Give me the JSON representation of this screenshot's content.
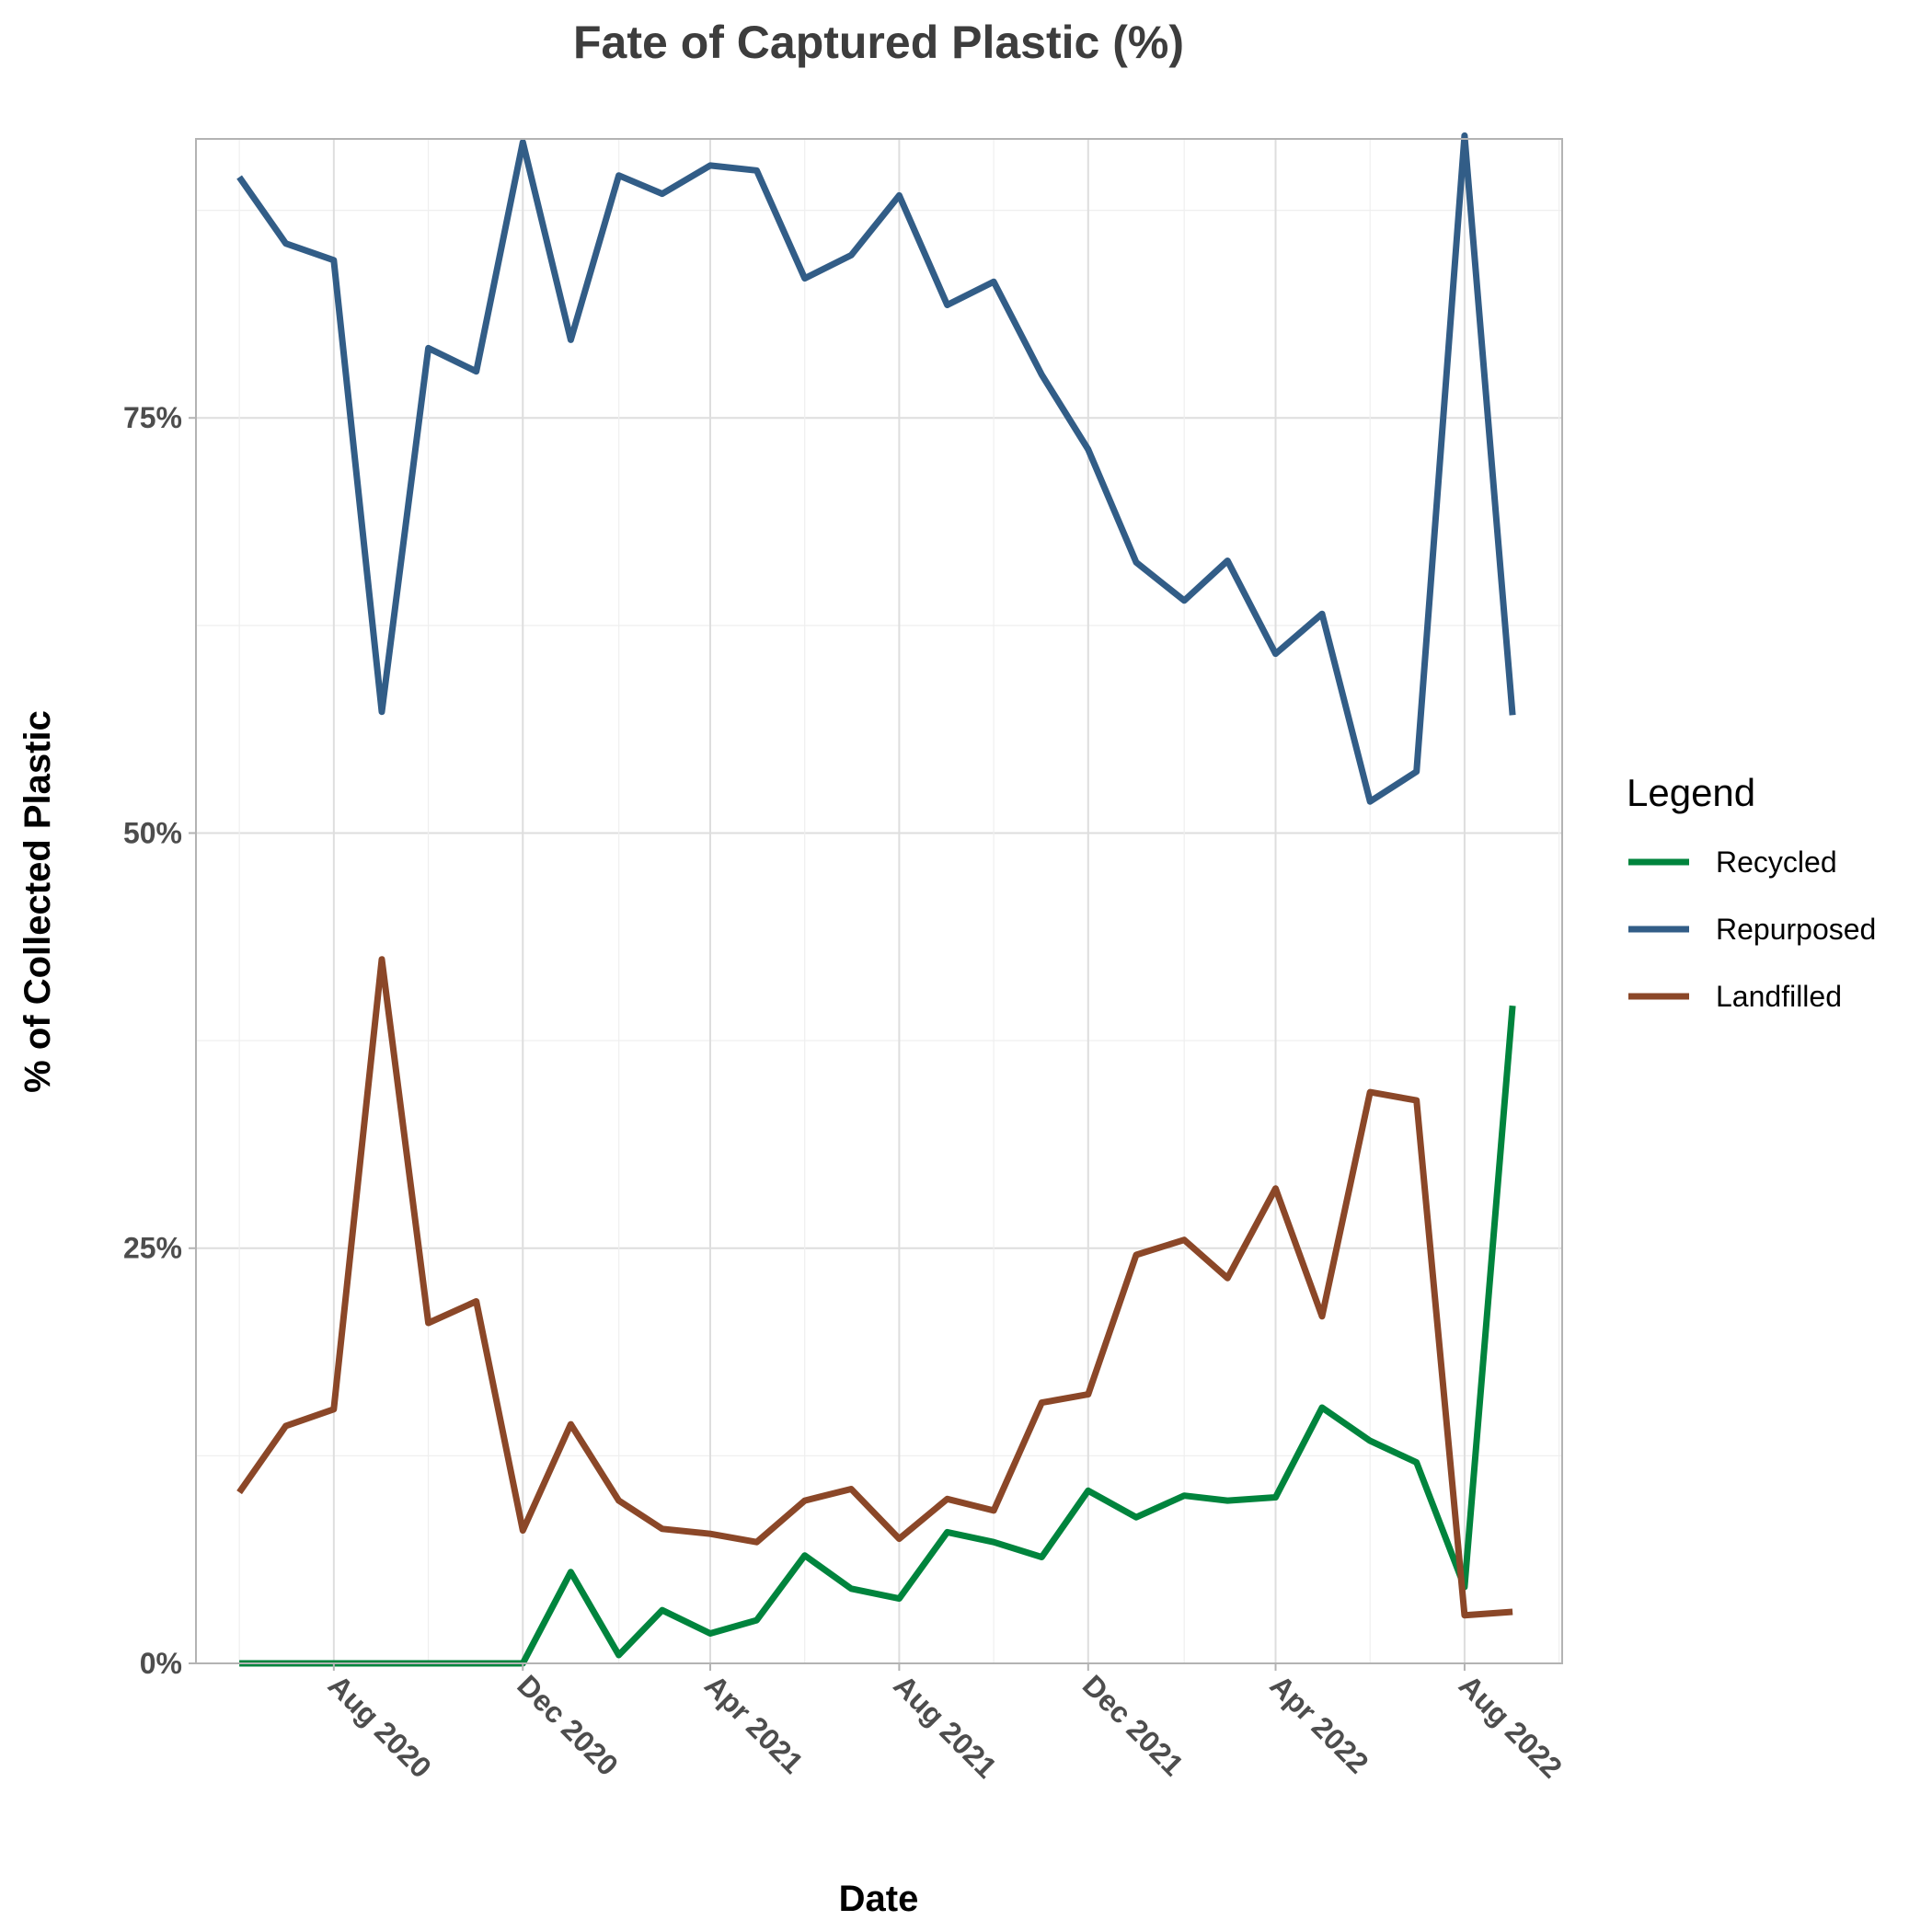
{
  "chart_data": {
    "type": "line",
    "title": "Fate of Captured Plastic (%)",
    "xlabel": "Date",
    "ylabel": "% of Collected Plastic",
    "x": [
      "2020-06",
      "2020-07",
      "2020-08",
      "2020-09",
      "2020-10",
      "2020-11",
      "2020-12",
      "2021-01",
      "2021-02",
      "2021-03",
      "2021-04",
      "2021-05",
      "2021-06",
      "2021-07",
      "2021-08",
      "2021-09",
      "2021-10",
      "2021-11",
      "2021-12",
      "2022-01",
      "2022-02",
      "2022-03",
      "2022-04",
      "2022-05",
      "2022-06",
      "2022-07",
      "2022-08",
      "2022-09"
    ],
    "x_ticks": [
      {
        "date": "2020-08",
        "label": "Aug 2020"
      },
      {
        "date": "2020-12",
        "label": "Dec 2020"
      },
      {
        "date": "2021-04",
        "label": "Apr 2021"
      },
      {
        "date": "2021-08",
        "label": "Aug 2021"
      },
      {
        "date": "2021-12",
        "label": "Dec 2021"
      },
      {
        "date": "2022-04",
        "label": "Apr 2022"
      },
      {
        "date": "2022-08",
        "label": "Aug 2022"
      }
    ],
    "xlim": [
      "2020-05-04",
      "2022-10-03"
    ],
    "y_ticks": [
      {
        "value": 0,
        "label": "0%"
      },
      {
        "value": 25,
        "label": "25%"
      },
      {
        "value": 50,
        "label": "50%"
      },
      {
        "value": 75,
        "label": "75%"
      }
    ],
    "ylim": [
      0,
      91.8
    ],
    "grid": true,
    "legend": {
      "title": "Legend",
      "position": "right"
    },
    "series": [
      {
        "name": "Recycled",
        "color": "#00843d",
        "values": [
          0,
          0,
          0,
          0,
          0,
          0,
          0,
          5.5,
          0.5,
          3.2,
          1.8,
          2.6,
          6.5,
          4.5,
          3.9,
          7.9,
          7.3,
          6.4,
          10.4,
          8.8,
          10.1,
          9.8,
          10.0,
          15.4,
          13.4,
          12.1,
          4.6,
          39.6
        ]
      },
      {
        "name": "Repurposed",
        "color": "#325d87",
        "values": [
          89.5,
          85.5,
          84.5,
          57.3,
          79.2,
          77.8,
          91.6,
          79.7,
          89.6,
          88.5,
          90.2,
          89.9,
          83.4,
          84.8,
          88.4,
          81.8,
          83.2,
          77.6,
          73.1,
          66.3,
          64.0,
          66.4,
          60.8,
          63.2,
          51.9,
          53.7,
          92.0,
          57.1
        ]
      },
      {
        "name": "Landfilled",
        "color": "#8b4728",
        "values": [
          10.3,
          14.3,
          15.3,
          42.4,
          20.5,
          21.8,
          8.0,
          14.4,
          9.8,
          8.1,
          7.8,
          7.3,
          9.8,
          10.5,
          7.5,
          9.9,
          9.2,
          15.7,
          16.2,
          24.6,
          25.5,
          23.2,
          28.6,
          20.9,
          34.4,
          33.9,
          2.9,
          3.1
        ]
      }
    ]
  }
}
